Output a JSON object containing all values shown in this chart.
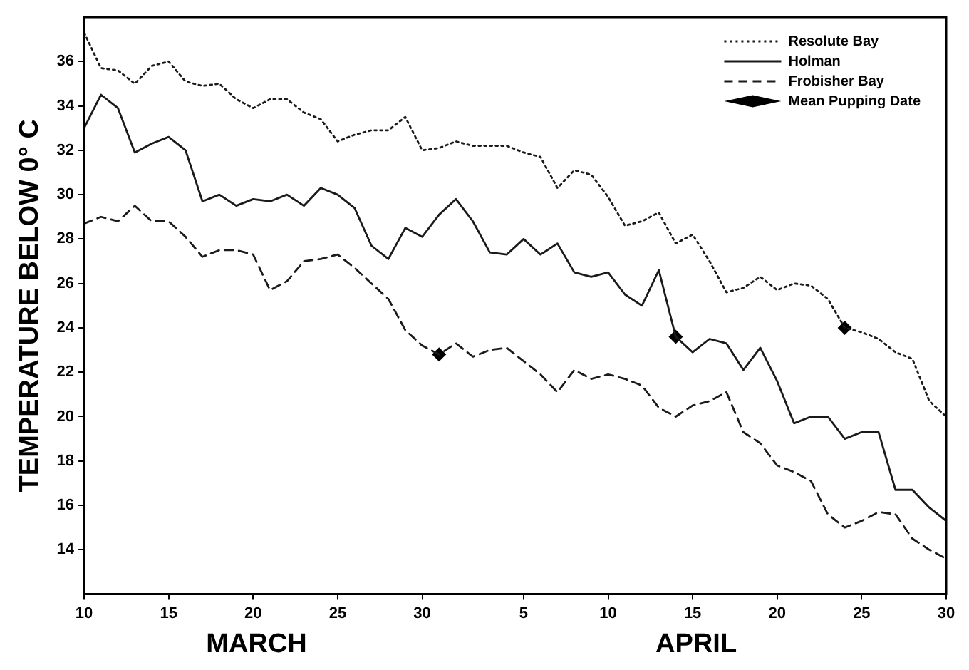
{
  "chart_data": {
    "type": "line",
    "ylabel": "TEMPERATURE BELOW 0° C",
    "x": [
      "--03-10",
      "--03-11",
      "--03-12",
      "--03-13",
      "--03-14",
      "--03-15",
      "--03-16",
      "--03-17",
      "--03-18",
      "--03-19",
      "--03-20",
      "--03-21",
      "--03-22",
      "--03-23",
      "--03-24",
      "--03-25",
      "--03-26",
      "--03-27",
      "--03-28",
      "--03-29",
      "--03-30",
      "--03-31",
      "--04-01",
      "--04-02",
      "--04-03",
      "--04-04",
      "--04-05",
      "--04-06",
      "--04-07",
      "--04-08",
      "--04-09",
      "--04-10",
      "--04-11",
      "--04-12",
      "--04-13",
      "--04-14",
      "--04-15",
      "--04-16",
      "--04-17",
      "--04-18",
      "--04-19",
      "--04-20",
      "--04-21",
      "--04-22",
      "--04-23",
      "--04-24",
      "--04-25",
      "--04-26",
      "--04-27",
      "--04-28",
      "--04-29",
      "--04-30"
    ],
    "series": [
      {
        "name": "Resolute Bay",
        "color": "#1a1a1a",
        "line_style": "dotted",
        "marker": "none",
        "values": [
          37.3,
          35.7,
          35.6,
          35.0,
          35.8,
          36.0,
          35.1,
          34.9,
          35.0,
          34.3,
          33.9,
          34.3,
          34.3,
          33.7,
          33.4,
          32.4,
          32.7,
          32.9,
          32.9,
          33.5,
          32.0,
          32.1,
          32.4,
          32.2,
          32.2,
          32.2,
          31.9,
          31.7,
          30.3,
          31.1,
          30.9,
          29.9,
          28.6,
          28.8,
          29.2,
          27.8,
          28.2,
          27.0,
          25.6,
          25.8,
          26.3,
          25.7,
          26.0,
          25.9,
          25.3,
          24.0,
          23.8,
          23.5,
          22.9,
          22.6,
          20.7,
          20.0
        ]
      },
      {
        "name": "Holman",
        "color": "#1a1a1a",
        "line_style": "solid",
        "marker": "none",
        "values": [
          33.0,
          34.5,
          33.9,
          31.9,
          32.3,
          32.6,
          32.0,
          29.7,
          30.0,
          29.5,
          29.8,
          29.7,
          30.0,
          29.5,
          30.3,
          30.0,
          29.4,
          27.7,
          27.1,
          28.5,
          28.1,
          29.1,
          29.8,
          28.8,
          27.4,
          27.3,
          28.0,
          27.3,
          27.8,
          26.5,
          26.3,
          26.5,
          25.5,
          25.0,
          26.6,
          23.6,
          22.9,
          23.5,
          23.3,
          22.1,
          23.1,
          21.6,
          19.7,
          20.0,
          20.0,
          19.0,
          19.3,
          19.3,
          16.7,
          16.7,
          15.9,
          15.3
        ]
      },
      {
        "name": "Frobisher Bay",
        "color": "#1a1a1a",
        "line_style": "dashed",
        "marker": "none",
        "values": [
          28.7,
          29.0,
          28.8,
          29.5,
          28.8,
          28.8,
          28.1,
          27.2,
          27.5,
          27.5,
          27.3,
          25.7,
          26.1,
          27.0,
          27.1,
          27.3,
          26.7,
          26.0,
          25.3,
          23.9,
          23.2,
          22.8,
          23.3,
          22.7,
          23.0,
          23.1,
          22.5,
          21.9,
          21.1,
          22.1,
          21.7,
          21.9,
          21.7,
          21.4,
          20.4,
          20.0,
          20.5,
          20.7,
          21.1,
          19.3,
          18.8,
          17.8,
          17.5,
          17.1,
          15.6,
          15.0,
          15.3,
          15.7,
          15.6,
          14.5,
          14.0,
          13.6
        ]
      },
      {
        "name": "Mean Pupping Date",
        "type": "scatter",
        "color": "#000000",
        "marker": "diamond",
        "x": [
          "--03-31",
          "--04-14",
          "--04-24"
        ],
        "values": [
          22.8,
          23.6,
          24.0
        ]
      }
    ],
    "xlim": [
      "--03-10",
      "--04-30"
    ],
    "xticks": [
      {
        "value": "--03-10",
        "label": "10"
      },
      {
        "value": "--03-15",
        "label": "15"
      },
      {
        "value": "--03-20",
        "label": "20"
      },
      {
        "value": "--03-25",
        "label": "25"
      },
      {
        "value": "--03-30",
        "label": "30"
      },
      {
        "value": "--04-05",
        "label": "5"
      },
      {
        "value": "--04-10",
        "label": "10"
      },
      {
        "value": "--04-15",
        "label": "15"
      },
      {
        "value": "--04-20",
        "label": "20"
      },
      {
        "value": "--04-25",
        "label": "25"
      },
      {
        "value": "--04-30",
        "label": "30"
      }
    ],
    "ylim": [
      12,
      38
    ],
    "yticks": [
      14,
      16,
      18,
      20,
      22,
      24,
      26,
      28,
      30,
      32,
      34,
      36
    ],
    "annotations": [
      "MARCH",
      "APRIL"
    ],
    "legend": "top right",
    "grid": false
  }
}
